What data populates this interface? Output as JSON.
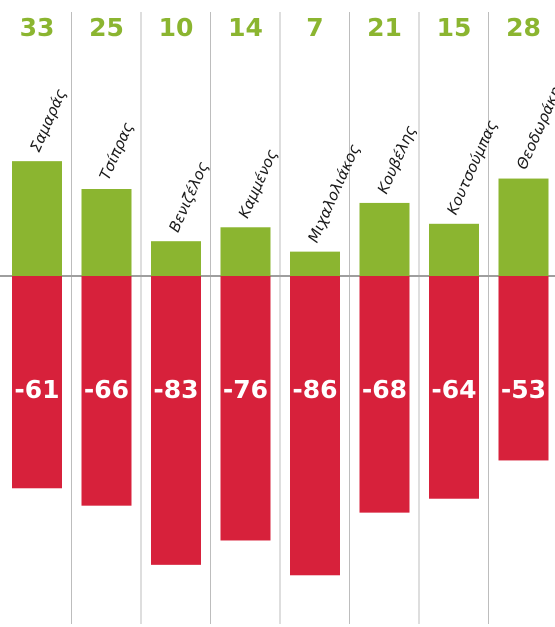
{
  "chart_data": {
    "type": "bar",
    "categories": [
      "Σαμαράς",
      "Τσίπρας",
      "Βενιζέλος",
      "Καμμένος",
      "Μιχαλολιάκος",
      "Κουβέλης",
      "Κουτσούμπας",
      "Θεοδωράκης"
    ],
    "series": [
      {
        "values": [
          33,
          25,
          10,
          14,
          7,
          21,
          15,
          28
        ]
      },
      {
        "values": [
          -61,
          -66,
          -83,
          -76,
          -86,
          -68,
          -64,
          -53
        ]
      }
    ],
    "positive_labels": [
      "33",
      "25",
      "10",
      "14",
      "7",
      "21",
      "15",
      "28"
    ],
    "negative_labels": [
      "-61",
      "-66",
      "-83",
      "-76",
      "-86",
      "-68",
      "-64",
      "-53"
    ],
    "ylim": [
      -90,
      35
    ],
    "grid": true,
    "colors": {
      "positive": "#8bb530",
      "negative": "#d7213b",
      "gridline": "#bdbdbd"
    }
  }
}
